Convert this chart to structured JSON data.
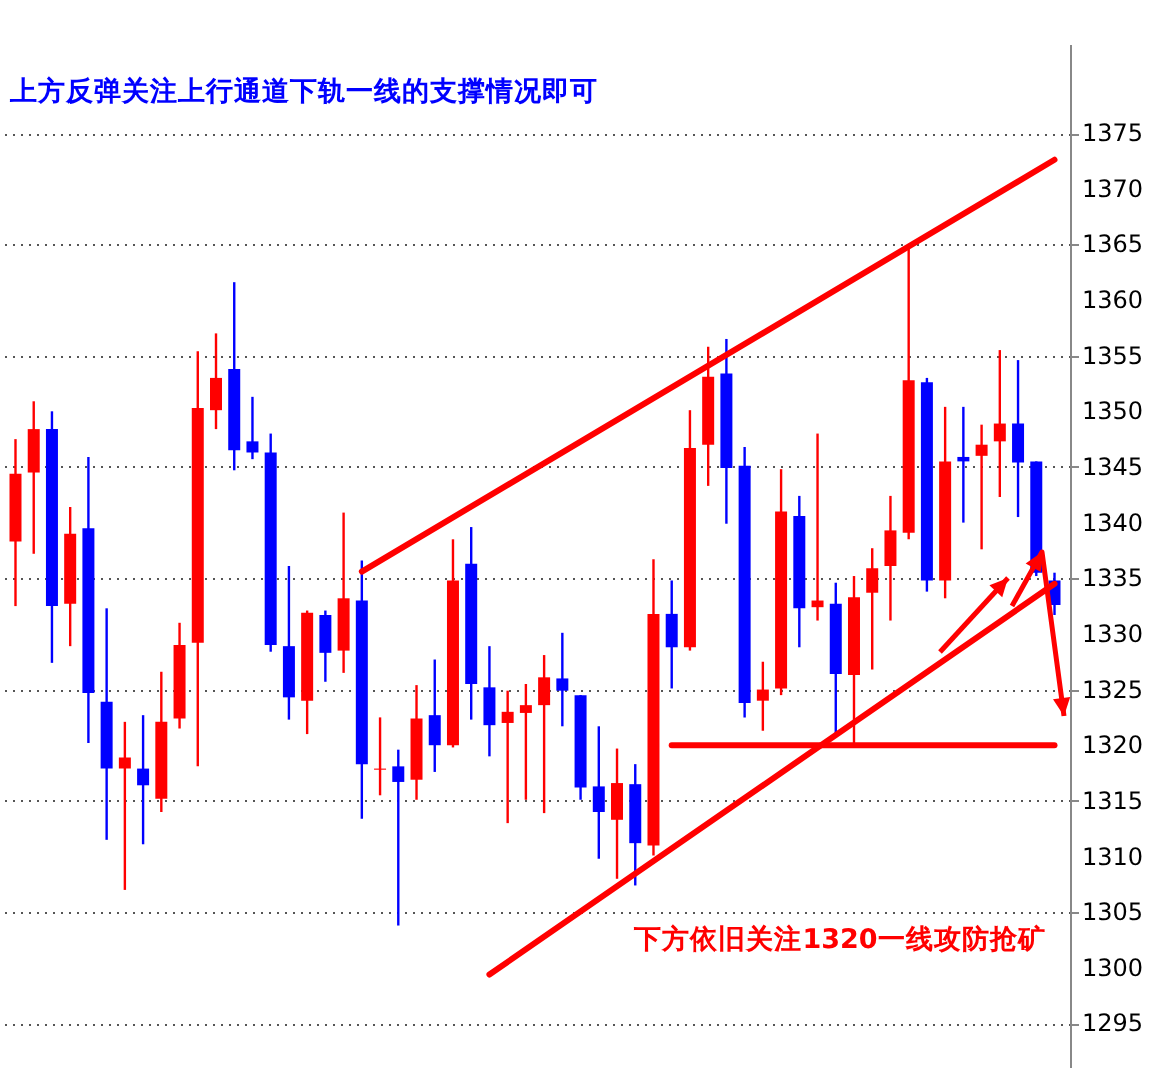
{
  "chart_data": {
    "type": "candlestick",
    "categories": [
      null,
      null,
      null,
      null,
      null,
      null,
      null,
      null,
      null,
      null,
      null,
      null,
      null,
      null,
      null,
      null,
      null,
      null,
      null,
      null,
      null,
      null,
      null,
      null,
      null,
      null,
      null,
      null,
      null,
      null,
      null,
      null,
      null,
      null,
      null,
      null,
      null,
      null,
      null,
      null,
      null,
      null,
      null,
      null,
      null,
      null,
      null,
      null,
      null,
      null,
      null,
      null,
      null,
      null,
      null,
      null,
      null,
      null
    ],
    "ohlc": [
      [
        1338.3,
        1347.5,
        1332.5,
        1344.4
      ],
      [
        1344.5,
        1350.9,
        1337.2,
        1348.4
      ],
      [
        1348.4,
        1350.0,
        1327.4,
        1332.5
      ],
      [
        1332.7,
        1341.4,
        1328.9,
        1339.0
      ],
      [
        1339.5,
        1345.9,
        1320.2,
        1324.7
      ],
      [
        1323.9,
        1332.3,
        1311.5,
        1317.9
      ],
      [
        1317.9,
        1322.1,
        1307.0,
        1318.9
      ],
      [
        1317.9,
        1322.7,
        1311.1,
        1316.4
      ],
      [
        1315.2,
        1326.6,
        1314.0,
        1322.1
      ],
      [
        1322.4,
        1331.0,
        1321.5,
        1329.0
      ],
      [
        1329.2,
        1355.4,
        1318.1,
        1350.3
      ],
      [
        1350.1,
        1357.0,
        1348.4,
        1353.0
      ],
      [
        1353.8,
        1361.6,
        1344.7,
        1346.5
      ],
      [
        1347.3,
        1351.3,
        1345.7,
        1346.3
      ],
      [
        1346.3,
        1348.0,
        1328.4,
        1329.0
      ],
      [
        1328.9,
        1336.1,
        1322.3,
        1324.3
      ],
      [
        1324.0,
        1332.1,
        1321.0,
        1331.9
      ],
      [
        1331.7,
        1332.1,
        1325.7,
        1328.3
      ],
      [
        1328.5,
        1340.9,
        1326.5,
        1333.2
      ],
      [
        1333.0,
        1336.6,
        1313.4,
        1318.3
      ],
      [
        1317.8,
        1322.5,
        1315.5,
        1317.9
      ],
      [
        1318.1,
        1319.6,
        1303.8,
        1316.7
      ],
      [
        1316.9,
        1325.4,
        1315.1,
        1322.4
      ],
      [
        1322.7,
        1327.7,
        1317.6,
        1320.0
      ],
      [
        1320.0,
        1338.5,
        1319.8,
        1334.8
      ],
      [
        1336.3,
        1339.6,
        1322.3,
        1325.5
      ],
      [
        1325.2,
        1328.9,
        1319.0,
        1321.8
      ],
      [
        1322.0,
        1324.9,
        1313.0,
        1323.0
      ],
      [
        1322.9,
        1325.5,
        1315.1,
        1323.6
      ],
      [
        1323.6,
        1328.1,
        1313.9,
        1326.1
      ],
      [
        1326.0,
        1330.1,
        1321.7,
        1324.9
      ],
      [
        1324.5,
        1324.5,
        1315.1,
        1316.2
      ],
      [
        1316.3,
        1321.7,
        1309.8,
        1314.0
      ],
      [
        1313.3,
        1319.7,
        1308.0,
        1316.6
      ],
      [
        1316.5,
        1318.3,
        1307.4,
        1311.2
      ],
      [
        1311.0,
        1336.7,
        1310.1,
        1331.8
      ],
      [
        1331.8,
        1334.8,
        1325.1,
        1328.8
      ],
      [
        1328.8,
        1350.1,
        1328.5,
        1346.7
      ],
      [
        1347.0,
        1355.8,
        1343.3,
        1353.1
      ],
      [
        1353.4,
        1356.5,
        1339.9,
        1344.9
      ],
      [
        1345.1,
        1346.8,
        1322.5,
        1323.8
      ],
      [
        1324.0,
        1327.5,
        1321.3,
        1325.0
      ],
      [
        1325.1,
        1344.8,
        1324.5,
        1341.0
      ],
      [
        1340.6,
        1342.4,
        1328.8,
        1332.3
      ],
      [
        1332.4,
        1348.0,
        1331.2,
        1333.0
      ],
      [
        1332.7,
        1334.6,
        1321.0,
        1326.4
      ],
      [
        1326.3,
        1335.2,
        1320.1,
        1333.3
      ],
      [
        1333.7,
        1337.7,
        1326.8,
        1335.9
      ],
      [
        1336.1,
        1342.4,
        1331.2,
        1339.3
      ],
      [
        1339.1,
        1364.7,
        1338.5,
        1352.8
      ],
      [
        1352.6,
        1353.0,
        1333.8,
        1334.8
      ],
      [
        1334.8,
        1350.4,
        1333.2,
        1345.5
      ],
      [
        1345.9,
        1350.4,
        1340.0,
        1345.5
      ],
      [
        1346.0,
        1348.8,
        1337.6,
        1347.0
      ],
      [
        1347.3,
        1355.5,
        1342.3,
        1348.9
      ],
      [
        1348.9,
        1354.6,
        1340.5,
        1345.4
      ],
      [
        1345.5,
        1345.5,
        1335.2,
        1335.5
      ],
      [
        1334.8,
        1335.5,
        1331.7,
        1332.6
      ]
    ],
    "colors": [
      "#ff0000",
      "#ff0000",
      "#0000ff",
      "#ff0000",
      "#0000ff",
      "#0000ff",
      "#ff0000",
      "#0000ff",
      "#ff0000",
      "#ff0000",
      "#ff0000",
      "#ff0000",
      "#0000ff",
      "#0000ff",
      "#0000ff",
      "#0000ff",
      "#ff0000",
      "#0000ff",
      "#ff0000",
      "#0000ff",
      "#ff0000",
      "#0000ff",
      "#ff0000",
      "#0000ff",
      "#ff0000",
      "#0000ff",
      "#0000ff",
      "#ff0000",
      "#ff0000",
      "#ff0000",
      "#0000ff",
      "#0000ff",
      "#0000ff",
      "#ff0000",
      "#0000ff",
      "#ff0000",
      "#0000ff",
      "#ff0000",
      "#ff0000",
      "#0000ff",
      "#0000ff",
      "#ff0000",
      "#ff0000",
      "#0000ff",
      "#ff0000",
      "#0000ff",
      "#ff0000",
      "#ff0000",
      "#ff0000",
      "#ff0000",
      "#0000ff",
      "#ff0000",
      "#0000ff",
      "#ff0000",
      "#ff0000",
      "#0000ff",
      "#0000ff",
      "#0000ff"
    ],
    "series": [
      {
        "type": "line",
        "color": "#ff0000",
        "values": [
          null,
          null,
          null,
          null,
          null,
          null,
          null,
          null,
          null,
          null,
          null,
          null,
          null,
          null,
          null,
          null,
          null,
          null,
          null,
          1335.6,
          null,
          null,
          null,
          null,
          null,
          null,
          null,
          null,
          null,
          null,
          null,
          null,
          null,
          null,
          null,
          null,
          null,
          null,
          null,
          null,
          null,
          null,
          null,
          null,
          null,
          null,
          null,
          null,
          null,
          null,
          null,
          null,
          null,
          null,
          null,
          null,
          null,
          1372.6
        ]
      },
      {
        "type": "line",
        "color": "#ff0000",
        "values": [
          null,
          null,
          null,
          null,
          null,
          null,
          null,
          null,
          null,
          null,
          null,
          null,
          null,
          null,
          null,
          null,
          null,
          null,
          null,
          null,
          null,
          null,
          null,
          null,
          null,
          null,
          1299.4,
          null,
          null,
          null,
          null,
          null,
          null,
          null,
          null,
          null,
          null,
          null,
          null,
          null,
          null,
          null,
          null,
          null,
          null,
          null,
          null,
          null,
          null,
          null,
          null,
          null,
          null,
          null,
          null,
          null,
          null,
          1334.5
        ]
      },
      {
        "type": "line",
        "color": "#ff0000",
        "values": [
          null,
          null,
          null,
          null,
          null,
          null,
          null,
          null,
          null,
          null,
          null,
          null,
          null,
          null,
          null,
          null,
          null,
          null,
          null,
          null,
          null,
          null,
          null,
          null,
          null,
          null,
          null,
          null,
          null,
          null,
          null,
          null,
          null,
          null,
          null,
          null,
          1320,
          null,
          null,
          null,
          null,
          null,
          null,
          null,
          null,
          null,
          null,
          null,
          null,
          null,
          null,
          null,
          null,
          null,
          null,
          null,
          null,
          1320
        ]
      }
    ],
    "ylim": [
      1291,
      1383
    ],
    "yticks": [
      1295,
      1300,
      1305,
      1310,
      1315,
      1320,
      1325,
      1330,
      1335,
      1340,
      1345,
      1350,
      1355,
      1360,
      1365,
      1370,
      1375
    ],
    "tick_labels": "y",
    "grid": "y",
    "annotations": [
      "上方反弹关注上行通道下轨一线的支撑情况即可",
      "下方依旧关注1320一线攻防抢矿"
    ]
  }
}
